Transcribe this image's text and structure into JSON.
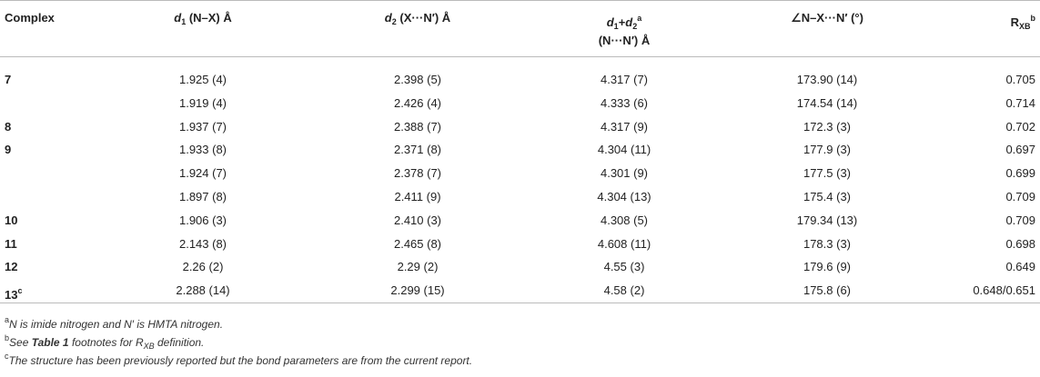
{
  "table": {
    "header": [
      [
        {
          "text": "Complex",
          "style": "plain"
        }
      ],
      [
        {
          "text": "d",
          "style": "i"
        },
        {
          "text": "1",
          "style": "sub"
        },
        {
          "text": " (N–X) Å",
          "style": "plain"
        }
      ],
      [
        {
          "text": "d",
          "style": "i"
        },
        {
          "text": "2",
          "style": "sub"
        },
        {
          "text": " (X···N′) Å",
          "style": "plain"
        }
      ],
      [
        {
          "text": "d",
          "style": "i"
        },
        {
          "text": "1",
          "style": "sub"
        },
        {
          "text": "+",
          "style": "plain"
        },
        {
          "text": "d",
          "style": "i"
        },
        {
          "text": "2",
          "style": "sub"
        },
        {
          "text": "a",
          "style": "sup"
        },
        {
          "text": "(N···N′) Å",
          "style": "line"
        }
      ],
      [
        {
          "text": "∠N–X···N′ (°)",
          "style": "plain"
        }
      ],
      [
        {
          "text": "R",
          "style": "plain"
        },
        {
          "text": "XB",
          "style": "sub"
        },
        {
          "text": "b",
          "style": "sup"
        }
      ]
    ],
    "rows": [
      [
        [
          {
            "text": "7",
            "style": "plain"
          }
        ],
        "1.925 (4)",
        "2.398 (5)",
        "4.317 (7)",
        "173.90 (14)",
        "0.705"
      ],
      [
        null,
        "1.919 (4)",
        "2.426 (4)",
        "4.333 (6)",
        "174.54 (14)",
        "0.714"
      ],
      [
        [
          {
            "text": "8",
            "style": "plain"
          }
        ],
        "1.937 (7)",
        "2.388 (7)",
        "4.317 (9)",
        "172.3 (3)",
        "0.702"
      ],
      [
        [
          {
            "text": "9",
            "style": "plain"
          }
        ],
        "1.933 (8)",
        "2.371 (8)",
        "4.304 (11)",
        "177.9 (3)",
        "0.697"
      ],
      [
        null,
        "1.924 (7)",
        "2.378 (7)",
        "4.301 (9)",
        "177.5 (3)",
        "0.699"
      ],
      [
        null,
        "1.897 (8)",
        "2.411 (9)",
        "4.304 (13)",
        "175.4 (3)",
        "0.709"
      ],
      [
        [
          {
            "text": "10",
            "style": "plain"
          }
        ],
        "1.906 (3)",
        "2.410 (3)",
        "4.308 (5)",
        "179.34 (13)",
        "0.709"
      ],
      [
        [
          {
            "text": "11",
            "style": "plain"
          }
        ],
        "2.143 (8)",
        "2.465 (8)",
        "4.608 (11)",
        "178.3 (3)",
        "0.698"
      ],
      [
        [
          {
            "text": "12",
            "style": "plain"
          }
        ],
        "2.26 (2)",
        "2.29 (2)",
        "4.55 (3)",
        "179.6 (9)",
        "0.649"
      ],
      [
        [
          {
            "text": "13",
            "style": "plain"
          },
          {
            "text": "c",
            "style": "sup"
          }
        ],
        "2.288 (14)",
        "2.299 (15)",
        "4.58 (2)",
        "175.8 (6)",
        "0.648/0.651"
      ]
    ],
    "footnotes": [
      [
        {
          "text": "a",
          "style": "sup"
        },
        {
          "text": "N is imide nitrogen and N′ is HMTA nitrogen.",
          "style": "i"
        }
      ],
      [
        {
          "text": "b",
          "style": "sup"
        },
        {
          "text": "See ",
          "style": "i"
        },
        {
          "text": "Table 1",
          "style": "bi"
        },
        {
          "text": " footnotes for R",
          "style": "i"
        },
        {
          "text": "XB",
          "style": "isub"
        },
        {
          "text": " definition.",
          "style": "i"
        }
      ],
      [
        {
          "text": "c",
          "style": "sup"
        },
        {
          "text": "The structure has been previously reported but the bond parameters are from the current report.",
          "style": "i"
        }
      ]
    ]
  }
}
